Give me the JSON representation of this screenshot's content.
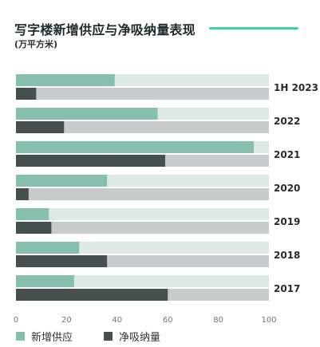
{
  "title": "写字楼新增供应与净吸纳量表现",
  "subtitle": "(万平方米)",
  "colors": {
    "accent_line": "#3fd3a0",
    "supply": "#86bfae",
    "supply_bg": "#dde9e5",
    "absorption": "#46504f",
    "absorption_bg": "#c8cbcb"
  },
  "chart_data": {
    "type": "bar",
    "orientation": "horizontal",
    "categories": [
      "1H 2023",
      "2022",
      "2021",
      "2020",
      "2019",
      "2018",
      "2017"
    ],
    "series": [
      {
        "name": "新增供应",
        "values": [
          39,
          56,
          94,
          36,
          13,
          25,
          23
        ]
      },
      {
        "name": "净吸纳量",
        "values": [
          8,
          19,
          59,
          5,
          14,
          36,
          60
        ]
      }
    ],
    "xlim": [
      0,
      100
    ],
    "xticks": [
      "0",
      "20",
      "40",
      "60",
      "80",
      "100"
    ],
    "legend_position": "bottom-left"
  }
}
